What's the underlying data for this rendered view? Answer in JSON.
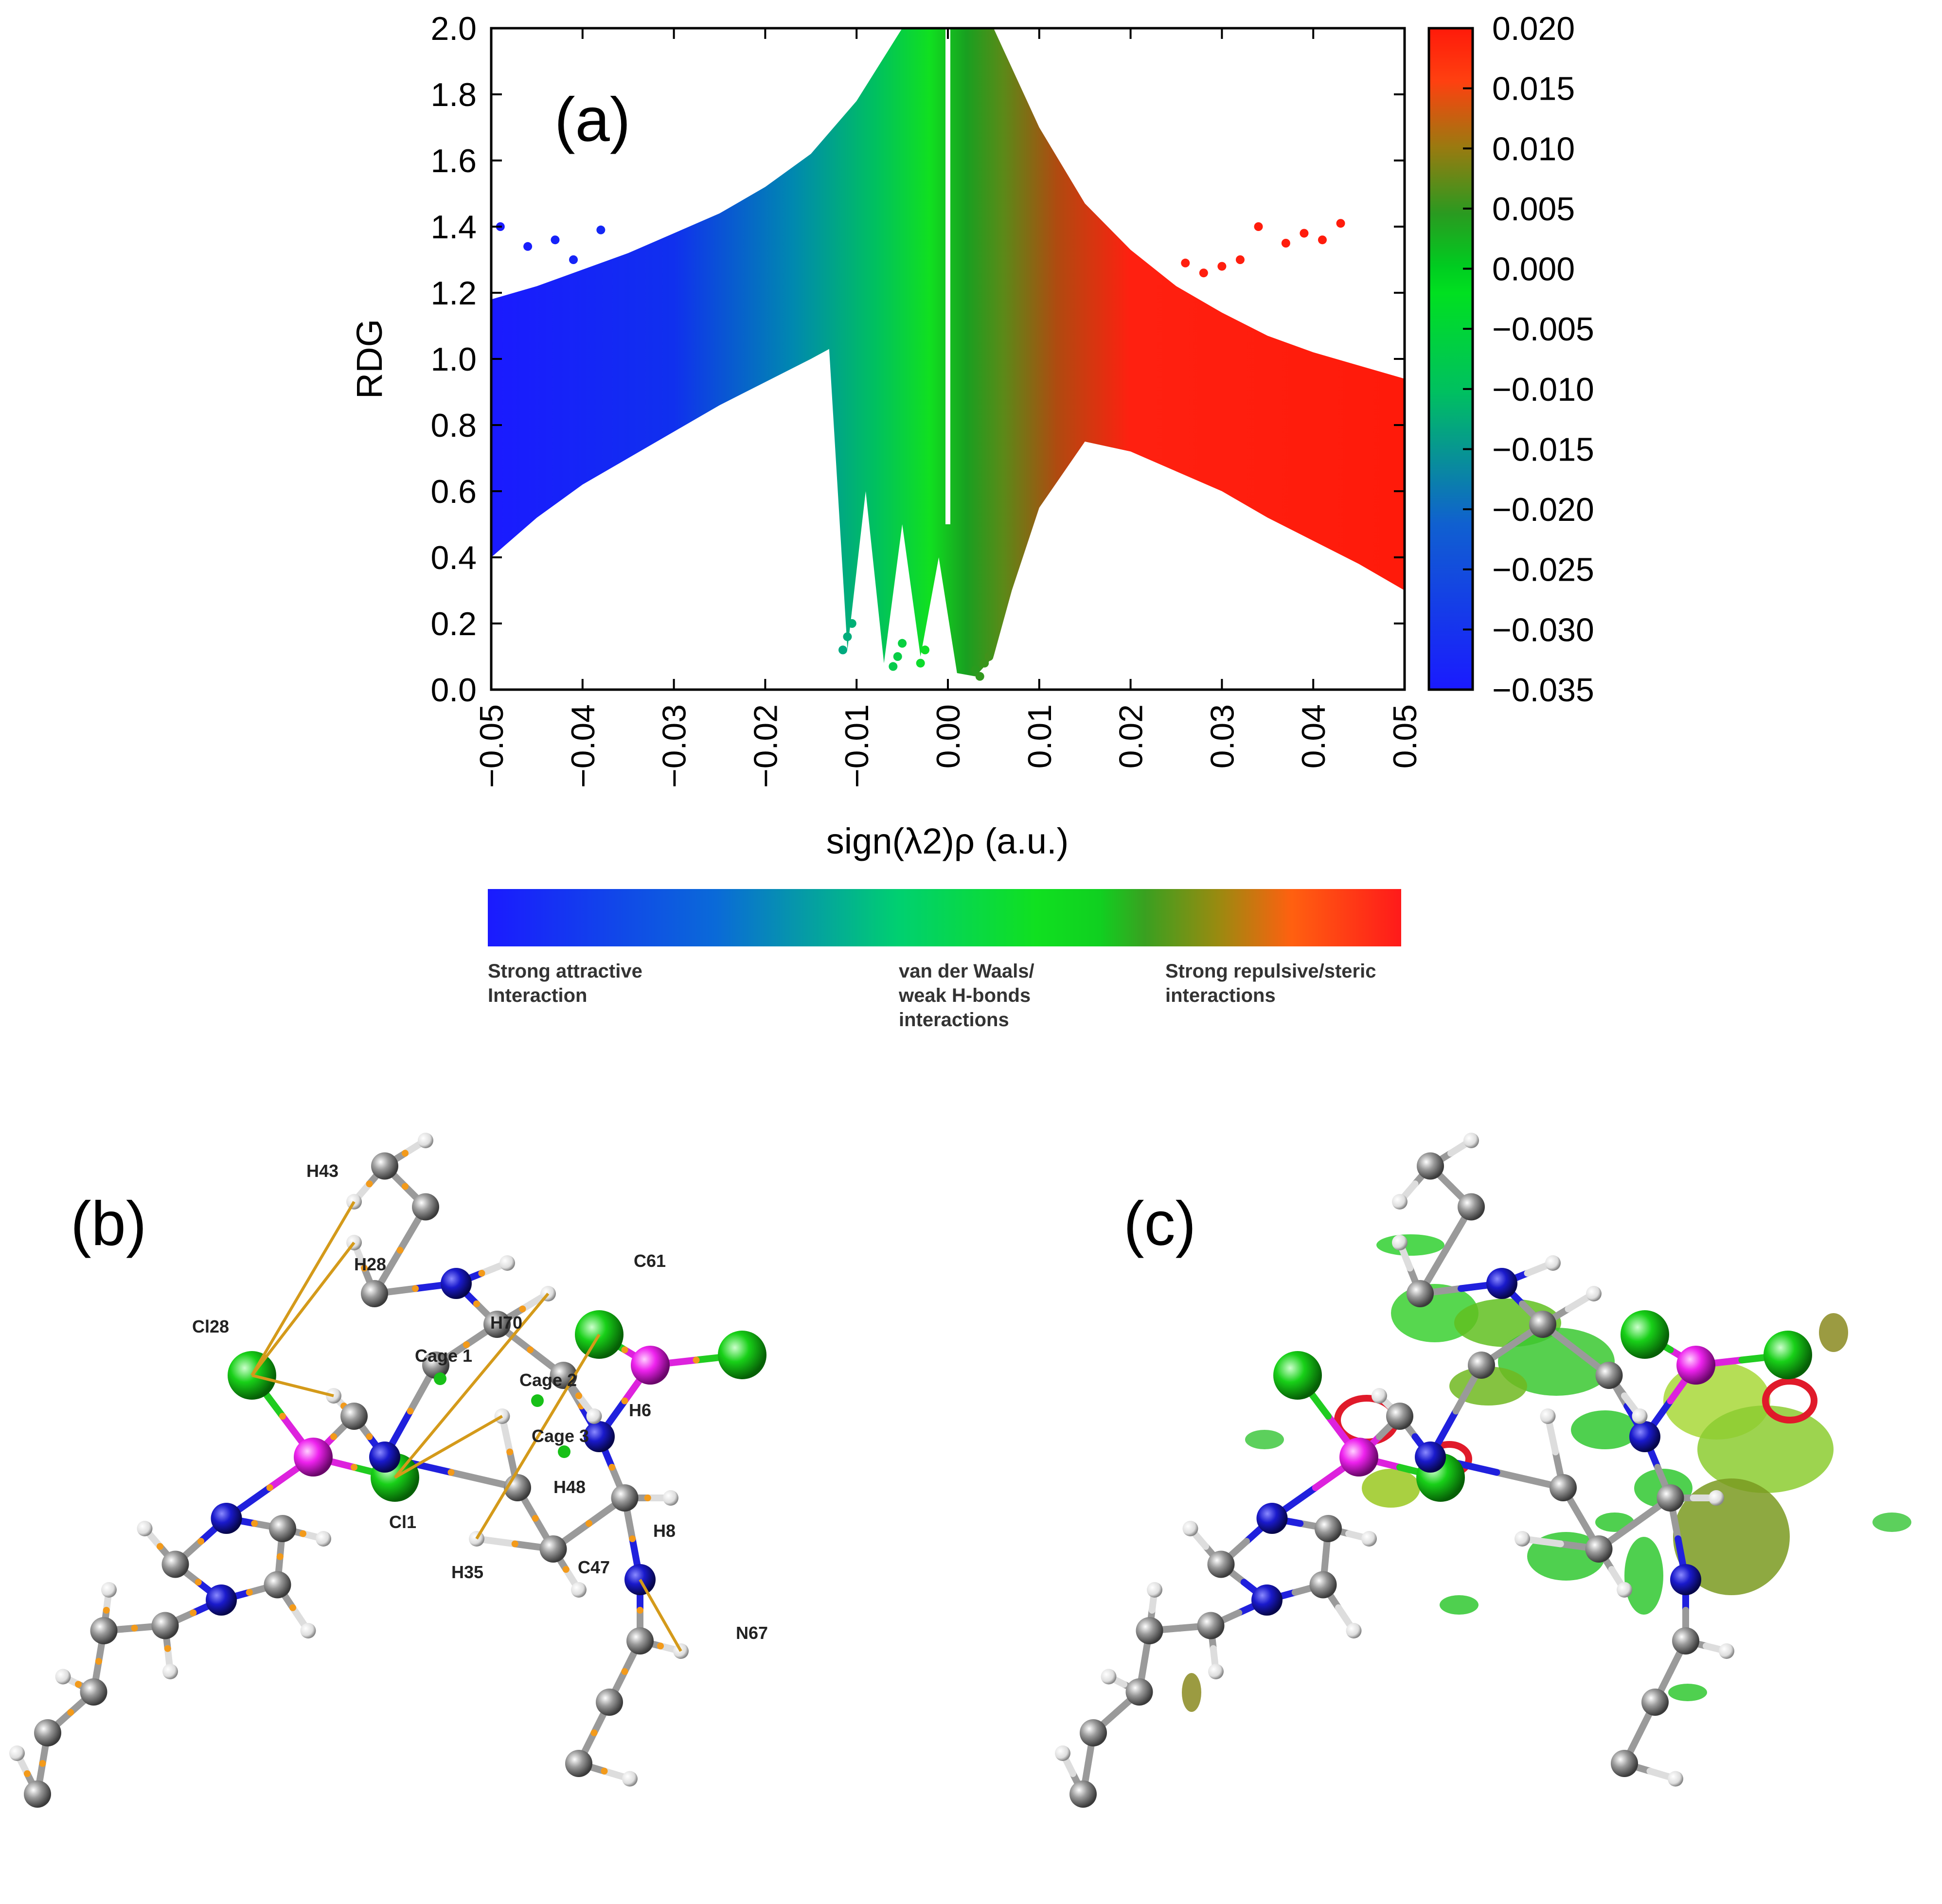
{
  "panels": {
    "a": "(a)",
    "b": "(b)",
    "c": "(c)"
  },
  "chart_data": {
    "type": "scatter",
    "title": "",
    "xlabel": "sign(λ2)ρ (a.u.)",
    "ylabel": "RDG",
    "xlim": [
      -0.05,
      0.05
    ],
    "ylim": [
      0.0,
      2.0
    ],
    "x_ticks": [
      "−0.05",
      "−0.04",
      "−0.03",
      "−0.02",
      "−0.01",
      "0.00",
      "0.01",
      "0.02",
      "0.03",
      "0.04",
      "0.05"
    ],
    "y_ticks": [
      "0.0",
      "0.2",
      "0.4",
      "0.6",
      "0.8",
      "1.0",
      "1.2",
      "1.4",
      "1.6",
      "1.8",
      "2.0"
    ],
    "colorbar": {
      "range": [
        -0.035,
        0.02
      ],
      "ticks": [
        "0.020",
        "0.015",
        "0.010",
        "0.005",
        "0.000",
        "−0.005",
        "−0.010",
        "−0.015",
        "−0.020",
        "−0.025",
        "−0.030",
        "−0.035"
      ],
      "colors": {
        "low": "#1f1fff",
        "mid": "#00e010",
        "high": "#ff1a0a"
      }
    },
    "envelope_upper": {
      "x": [
        -0.05,
        -0.045,
        -0.04,
        -0.035,
        -0.03,
        -0.025,
        -0.02,
        -0.015,
        -0.01,
        -0.005,
        -0.003,
        0.003,
        0.005,
        0.01,
        0.015,
        0.02,
        0.025,
        0.03,
        0.035,
        0.04,
        0.045,
        0.05
      ],
      "y": [
        1.18,
        1.22,
        1.27,
        1.32,
        1.38,
        1.44,
        1.52,
        1.62,
        1.78,
        2.0,
        2.0,
        2.0,
        2.0,
        1.7,
        1.47,
        1.33,
        1.22,
        1.14,
        1.07,
        1.02,
        0.98,
        0.94
      ]
    },
    "envelope_lower": {
      "x": [
        -0.05,
        -0.045,
        -0.04,
        -0.035,
        -0.03,
        -0.025,
        -0.02,
        -0.015,
        -0.013,
        -0.011,
        -0.009,
        -0.007,
        -0.005,
        -0.003,
        -0.001,
        0.001,
        0.003,
        0.005,
        0.007,
        0.01,
        0.015,
        0.02,
        0.025,
        0.03,
        0.035,
        0.04,
        0.045,
        0.05
      ],
      "y": [
        0.4,
        0.52,
        0.62,
        0.7,
        0.78,
        0.86,
        0.93,
        1.0,
        1.03,
        0.12,
        0.6,
        0.08,
        0.5,
        0.1,
        0.4,
        0.05,
        0.04,
        0.1,
        0.3,
        0.55,
        0.75,
        0.72,
        0.66,
        0.6,
        0.52,
        0.45,
        0.38,
        0.3
      ]
    },
    "outliers": {
      "x": [
        -0.049,
        -0.046,
        -0.043,
        -0.041,
        -0.038,
        0.026,
        0.028,
        0.03,
        0.032,
        0.034,
        0.037,
        0.039,
        0.041,
        0.043
      ],
      "y": [
        1.4,
        1.34,
        1.36,
        1.3,
        1.39,
        1.29,
        1.26,
        1.28,
        1.3,
        1.4,
        1.35,
        1.38,
        1.36,
        1.41
      ]
    },
    "spike_low": {
      "x": [
        -0.0115,
        -0.011,
        -0.0105,
        -0.006,
        -0.0055,
        -0.005,
        -0.003,
        -0.0025,
        0.003,
        0.0035,
        0.004,
        0.0045
      ],
      "y": [
        0.12,
        0.16,
        0.2,
        0.07,
        0.1,
        0.14,
        0.08,
        0.12,
        0.06,
        0.04,
        0.08,
        0.1
      ]
    }
  },
  "legend_bar": {
    "left": "Strong attractive\nInteraction",
    "left_l1": "Strong attractive",
    "left_l2": "Interaction",
    "mid_l1": "van der Waals/",
    "mid_l2": "weak H-bonds",
    "mid_l3": "interactions",
    "right_l1": "Strong repulsive/steric",
    "right_l2": "interactions"
  },
  "molecule_b_labels": {
    "H43": "H43",
    "H28": "H28",
    "C61": "C61",
    "Cl28": "Cl28",
    "H70": "H70",
    "Cage1": "Cage 1",
    "Cage2": "Cage 2",
    "Cage3": "Cage 3",
    "H6": "H6",
    "H48": "H48",
    "Cl1": "Cl1",
    "H35": "H35",
    "C47": "C47",
    "H8": "H8",
    "N67": "N67"
  }
}
